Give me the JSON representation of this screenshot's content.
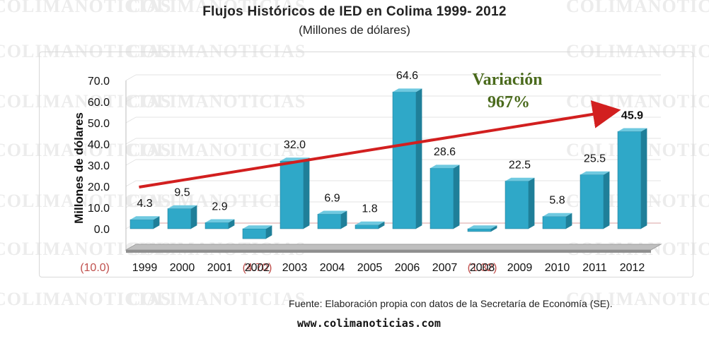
{
  "watermark": {
    "text": "COLIMANOTICIAS"
  },
  "chart_data": {
    "type": "bar",
    "title": "Flujos Históricos de IED en Colima 1999- 2012",
    "subtitle": "(Millones de dólares)",
    "ylabel": "Millones de dólares",
    "xlabel": "",
    "ylim": [
      -10,
      70
    ],
    "yticks": [
      70,
      60,
      50,
      40,
      30,
      20,
      10,
      0
    ],
    "ytick_labels": [
      "70.0",
      "60.0",
      "50.0",
      "40.0",
      "30.0",
      "20.0",
      "10.0",
      "0.0"
    ],
    "ytick_neg_label": "(10.0)",
    "categories": [
      "1999",
      "2000",
      "2001",
      "2002",
      "2003",
      "2004",
      "2005",
      "2006",
      "2007",
      "2008",
      "2009",
      "2010",
      "2011",
      "2012"
    ],
    "values": [
      4.3,
      9.5,
      2.9,
      -4.7,
      32.0,
      6.9,
      1.8,
      64.6,
      28.6,
      -1.32,
      22.5,
      5.8,
      25.5,
      45.9
    ],
    "value_labels": [
      "4.3",
      "9.5",
      "2.9",
      "(4.70)",
      "32.0",
      "6.9",
      "1.8",
      "64.6",
      "28.6",
      "(1.32)",
      "22.5",
      "5.8",
      "25.5",
      "45.9"
    ],
    "bar_color": "#2fa8c8",
    "negative_label_color": "#c0504d",
    "trend_color": "#d21f1f",
    "grid": true,
    "annotation": {
      "line1": "Variación",
      "line2": "967%",
      "color": "#4a6a1c"
    }
  },
  "footer": {
    "source": "Fuente: Elaboración propia con datos de la Secretaría de Economía (SE).",
    "website": "www.colimanoticias.com"
  }
}
